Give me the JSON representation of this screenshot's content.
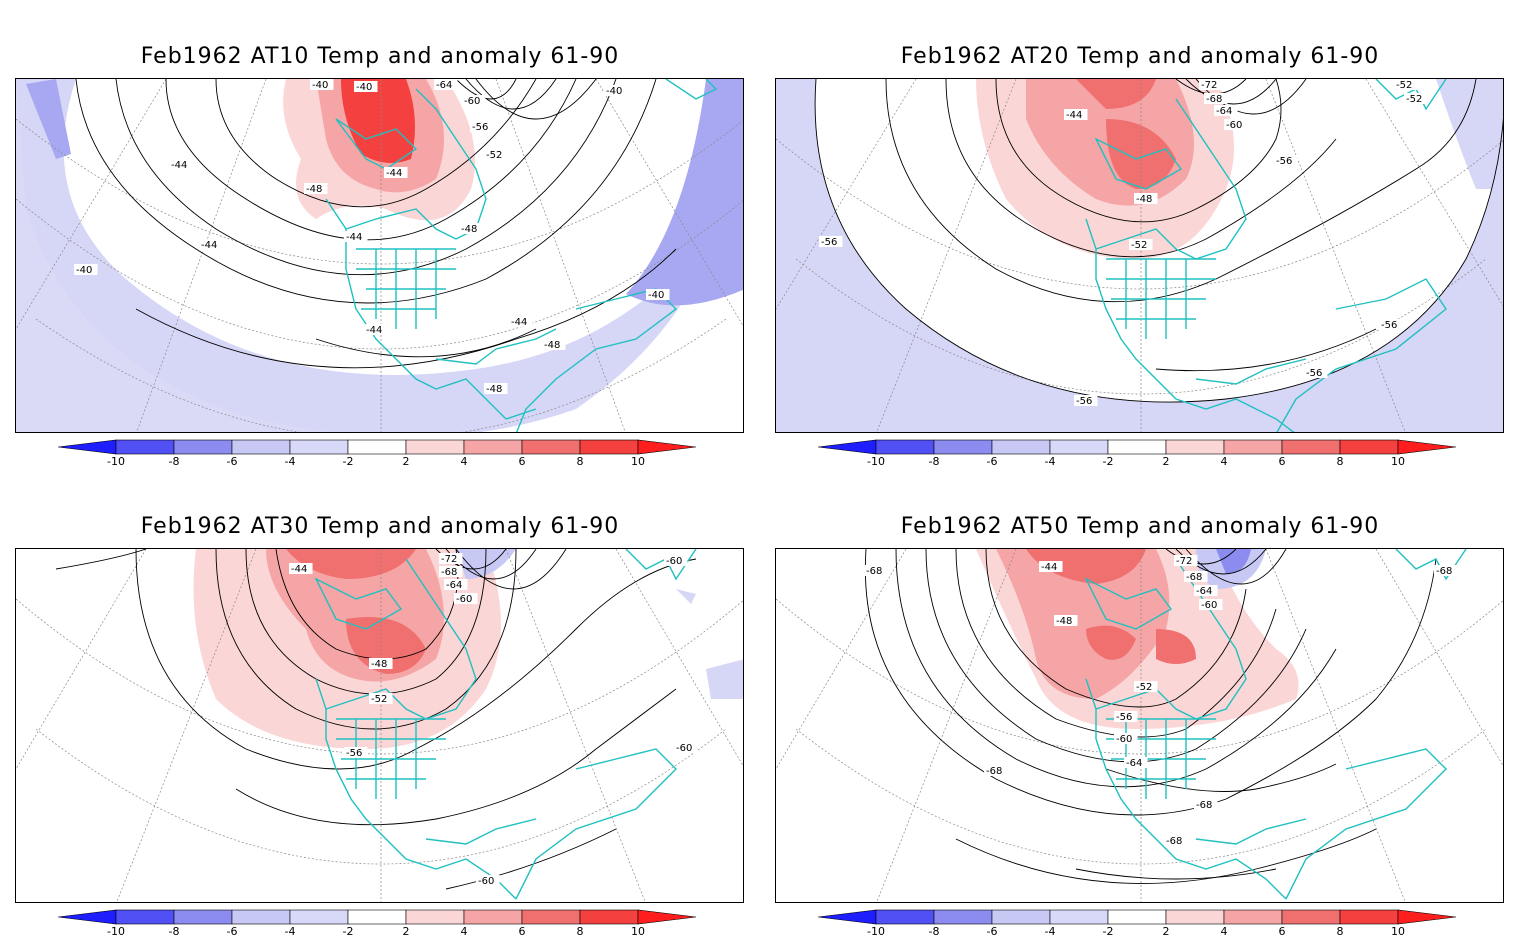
{
  "colorbar": {
    "ticks": [
      "-10",
      "-8",
      "-6",
      "-4",
      "-2",
      "2",
      "4",
      "6",
      "8",
      "10"
    ],
    "colors": [
      "#1e1eff",
      "#5050f5",
      "#8c8cf0",
      "#c8c8f5",
      "#d8d8f8",
      "#ffffff",
      "#fbd6d6",
      "#f5a5a5",
      "#f07070",
      "#f54040",
      "#ff1e1e"
    ]
  },
  "panels": [
    {
      "title": "Feb1962 AT10 Temp and anomaly 61-90",
      "contour_labels": [
        "-40",
        "-40",
        "-40",
        "-64",
        "-60",
        "-56",
        "-52",
        "-44",
        "-44",
        "-48",
        "-44",
        "-44",
        "-48",
        "-40",
        "-44",
        "-44",
        "-48",
        "-48",
        "-40"
      ],
      "blue_tint": "#d6d6f6",
      "blue_deep": "#a8a8f2"
    },
    {
      "title": "Feb1962 AT20 Temp and anomaly 61-90",
      "contour_labels": [
        "-72",
        "-68",
        "-64",
        "-60",
        "-44",
        "-56",
        "-48",
        "-52",
        "-52",
        "-52",
        "-56",
        "-56",
        "-56",
        "-56"
      ],
      "blue_tint": "#d6d6f6",
      "blue_deep": "#c0c0f4"
    },
    {
      "title": "Feb1962 AT30 Temp and anomaly 61-90",
      "contour_labels": [
        "-72",
        "-68",
        "-64",
        "-60",
        "-44",
        "-48",
        "-52",
        "-56",
        "-60",
        "-60",
        "-60"
      ],
      "blue_tint": "#d6d6f6",
      "blue_deep": "#c0c0f4"
    },
    {
      "title": "Feb1962 AT50 Temp and anomaly 61-90",
      "contour_labels": [
        "-72",
        "-68",
        "-64",
        "-60",
        "-68",
        "-44",
        "-48",
        "-52",
        "-56",
        "-60",
        "-64",
        "-68",
        "-68",
        "-68",
        "-68"
      ],
      "blue_tint": "#d6d6f6",
      "blue_deep": "#8c8cf0"
    }
  ]
}
